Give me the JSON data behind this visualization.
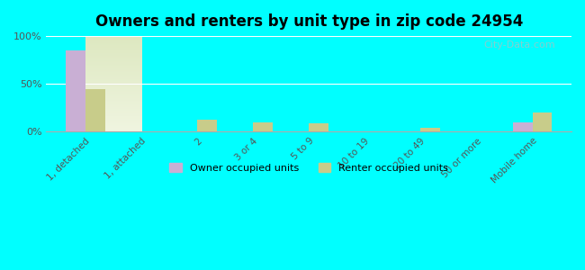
{
  "title": "Owners and renters by unit type in zip code 24954",
  "categories": [
    "1, detached",
    "1, attached",
    "2",
    "3 or 4",
    "5 to 9",
    "10 to 19",
    "20 to 49",
    "50 or more",
    "Mobile home"
  ],
  "owner_values": [
    85,
    0,
    0,
    0,
    0,
    0,
    0,
    0,
    10
  ],
  "renter_values": [
    45,
    0,
    13,
    10,
    9,
    0,
    4,
    0,
    20
  ],
  "owner_color": "#c9afd4",
  "renter_color": "#c8cc8a",
  "background_color": "#00ffff",
  "plot_bg_top": "#e8f0d0",
  "plot_bg_bottom": "#f5f8ec",
  "ylim": [
    0,
    100
  ],
  "yticks": [
    0,
    50,
    100
  ],
  "ytick_labels": [
    "0%",
    "50%",
    "100%"
  ],
  "bar_width": 0.35,
  "legend_owner": "Owner occupied units",
  "legend_renter": "Renter occupied units",
  "watermark": "City-Data.com"
}
